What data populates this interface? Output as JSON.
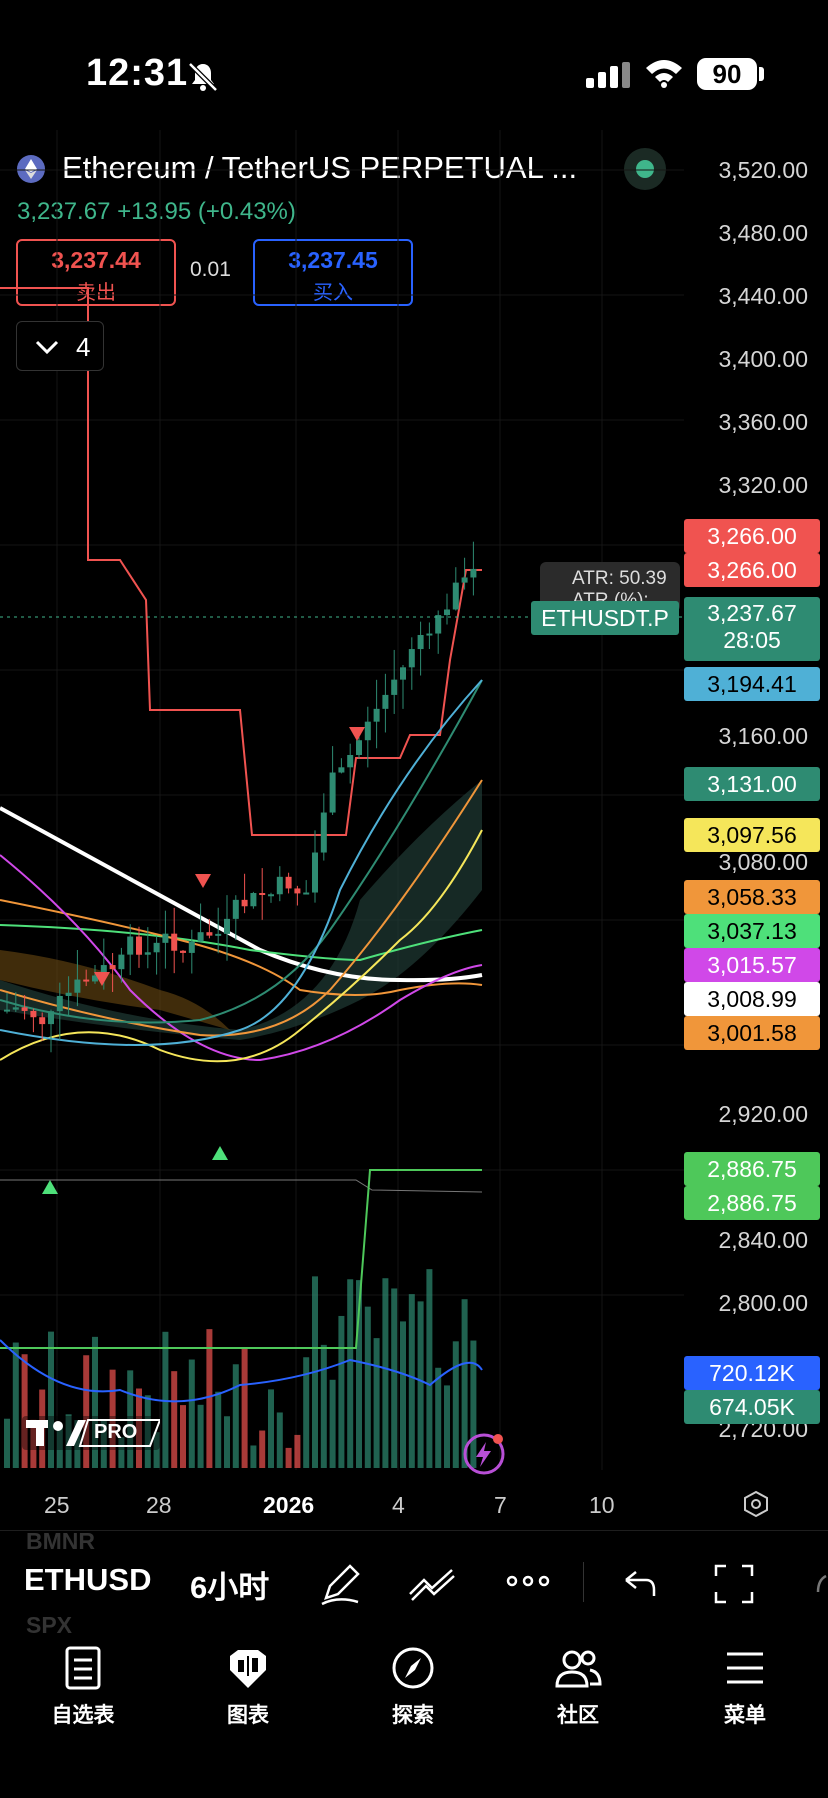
{
  "status_bar": {
    "time": "12:31",
    "battery": "90"
  },
  "header": {
    "title": "Ethereum / TetherUS PERPETUAL ...",
    "last_price": "3,237.67",
    "change": "+13.95 (+0.43%)",
    "sell_price": "3,237.44",
    "sell_label": "卖出",
    "spread": "0.01",
    "buy_price": "3,237.45",
    "buy_label": "买入",
    "indicator_count": "4"
  },
  "y_axis": {
    "ticks": [
      "3,520.00",
      "3,480.00",
      "3,440.00",
      "3,400.00",
      "3,360.00",
      "3,320.00",
      "3,160.00",
      "3,080.00",
      "2,920.00",
      "2,840.00",
      "2,800.00",
      "2,720.00"
    ]
  },
  "price_labels": [
    {
      "text": "3,266.00",
      "bg": "#f05350",
      "fg": "#ffffff"
    },
    {
      "text": "3,266.00",
      "bg": "#f05350",
      "fg": "#ffffff"
    },
    {
      "text": "3,194.41",
      "bg": "#4fb0d6",
      "fg": "#000000"
    },
    {
      "text": "3,131.00",
      "bg": "#2e8b72",
      "fg": "#ffffff"
    },
    {
      "text": "3,097.56",
      "bg": "#f5e65a",
      "fg": "#000000"
    },
    {
      "text": "3,058.33",
      "bg": "#f0963a",
      "fg": "#000000"
    },
    {
      "text": "3,037.13",
      "bg": "#4ee07a",
      "fg": "#000000"
    },
    {
      "text": "3,015.57",
      "bg": "#d048e8",
      "fg": "#ffffff"
    },
    {
      "text": "3,008.99",
      "bg": "#ffffff",
      "fg": "#000000"
    },
    {
      "text": "3,001.58",
      "bg": "#f0963a",
      "fg": "#000000"
    },
    {
      "text": "2,886.75",
      "bg": "#4ec85a",
      "fg": "#ffffff"
    },
    {
      "text": "2,886.75",
      "bg": "#4ec85a",
      "fg": "#ffffff"
    },
    {
      "text": "720.12K",
      "bg": "#2962ff",
      "fg": "#ffffff"
    },
    {
      "text": "674.05K",
      "bg": "#2e8b72",
      "fg": "#ffffff"
    }
  ],
  "current_price_box": {
    "price": "3,237.67",
    "countdown": "28:05"
  },
  "atr": {
    "line1": "ATR: 50.39",
    "line2": "ATR (%): 1.56"
  },
  "symbol_tag": "ETHUSDT.P",
  "x_axis": {
    "ticks": [
      "25",
      "28",
      "2026",
      "4",
      "7",
      "10"
    ]
  },
  "brand": "PRO",
  "toolbar": {
    "symbol": "ETHUSD",
    "interval": "6小时",
    "ghost_above": "BMNR",
    "ghost_below": "SPX"
  },
  "nav": [
    {
      "label": "自选表",
      "icon": "watchlist-icon"
    },
    {
      "label": "图表",
      "icon": "chart-icon"
    },
    {
      "label": "探索",
      "icon": "compass-icon"
    },
    {
      "label": "社区",
      "icon": "community-icon"
    },
    {
      "label": "菜单",
      "icon": "menu-icon"
    }
  ],
  "colors": {
    "up": "#2e8b72",
    "down": "#f05350",
    "accent": "#2962ff"
  }
}
